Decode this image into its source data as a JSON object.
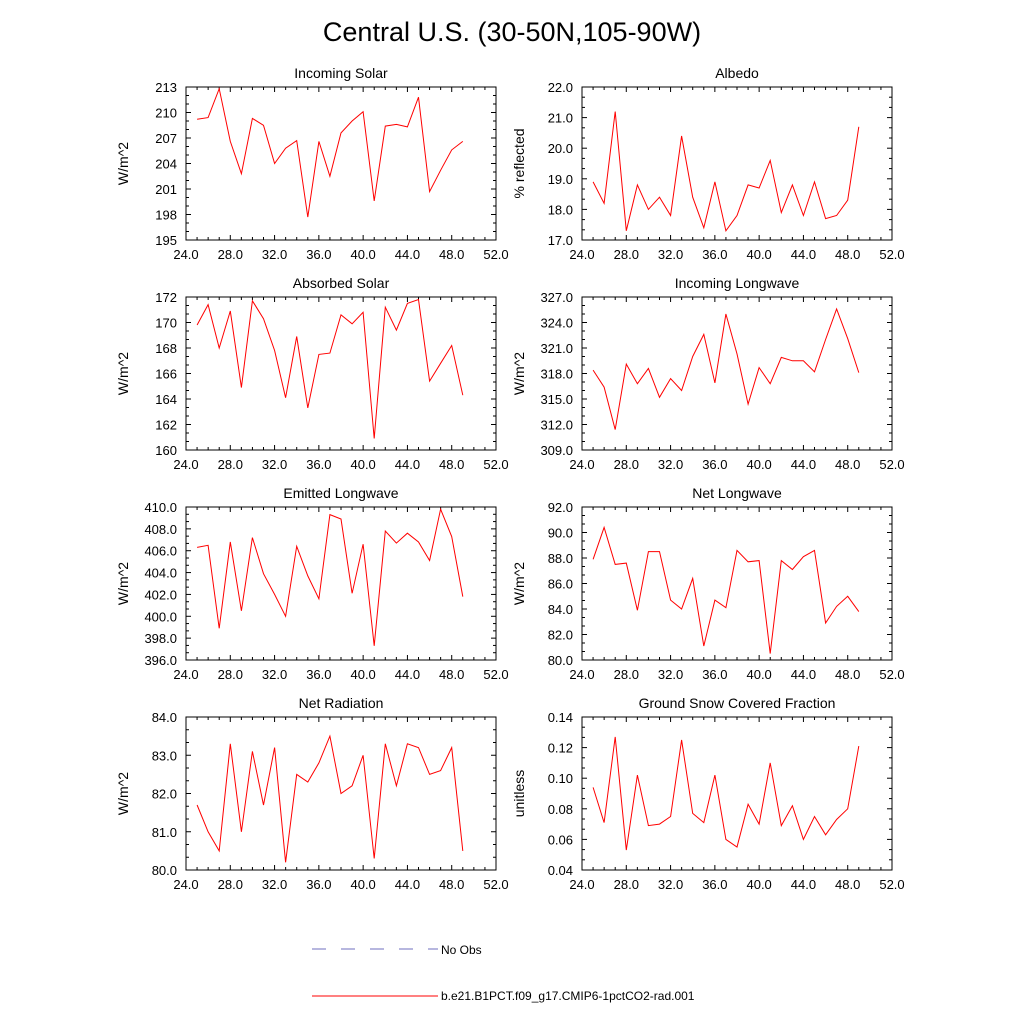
{
  "figure": {
    "title": "Central U.S. (30-50N,105-90W)",
    "legend": [
      {
        "label": "No Obs",
        "color": "#6f6fbf",
        "dash": "dashed"
      },
      {
        "label": "b.e21.B1PCT.f09_g17.CMIP6-1pctCO2-rad.001",
        "color": "#ff0000",
        "dash": "solid"
      }
    ]
  },
  "chart_data": [
    {
      "type": "line",
      "title": "Incoming Solar",
      "ylabel": "W/m^2",
      "xlim": [
        24,
        52
      ],
      "xticks": [
        "24.0",
        "28.0",
        "32.0",
        "36.0",
        "40.0",
        "44.0",
        "48.0",
        "52.0"
      ],
      "ylim": [
        195,
        213
      ],
      "yticks": [
        "195",
        "198",
        "201",
        "204",
        "207",
        "210",
        "213"
      ],
      "series": [
        {
          "color": "#ff0000",
          "x": [
            25,
            26,
            27,
            28,
            29,
            30,
            31,
            32,
            33,
            34,
            35,
            36,
            37,
            38,
            39,
            40,
            41,
            42,
            43,
            44,
            45,
            46,
            47,
            48,
            49
          ],
          "y": [
            209.2,
            209.4,
            212.8,
            206.6,
            202.8,
            209.3,
            208.5,
            204.0,
            205.8,
            206.7,
            197.7,
            206.6,
            202.5,
            207.6,
            209.0,
            210.1,
            199.6,
            208.4,
            208.6,
            208.3,
            211.8,
            200.7,
            203.2,
            205.6,
            206.6
          ]
        }
      ]
    },
    {
      "type": "line",
      "title": "Albedo",
      "ylabel": "% reflected",
      "xlim": [
        24,
        52
      ],
      "xticks": [
        "24.0",
        "28.0",
        "32.0",
        "36.0",
        "40.0",
        "44.0",
        "48.0",
        "52.0"
      ],
      "ylim": [
        17,
        22
      ],
      "yticks": [
        "17.0",
        "18.0",
        "19.0",
        "20.0",
        "21.0",
        "22.0"
      ],
      "series": [
        {
          "color": "#ff0000",
          "x": [
            25,
            26,
            27,
            28,
            29,
            30,
            31,
            32,
            33,
            34,
            35,
            36,
            37,
            38,
            39,
            40,
            41,
            42,
            43,
            44,
            45,
            46,
            47,
            48,
            49
          ],
          "y": [
            18.9,
            18.2,
            21.2,
            17.3,
            18.8,
            18.0,
            18.4,
            17.8,
            20.4,
            18.4,
            17.4,
            18.9,
            17.3,
            17.8,
            18.8,
            18.7,
            19.6,
            17.9,
            18.8,
            17.8,
            18.9,
            17.7,
            17.8,
            18.3,
            20.7
          ]
        }
      ]
    },
    {
      "type": "line",
      "title": "Absorbed Solar",
      "ylabel": "W/m^2",
      "xlim": [
        24,
        52
      ],
      "xticks": [
        "24.0",
        "28.0",
        "32.0",
        "36.0",
        "40.0",
        "44.0",
        "48.0",
        "52.0"
      ],
      "ylim": [
        160,
        172
      ],
      "yticks": [
        "160",
        "162",
        "164",
        "166",
        "168",
        "170",
        "172"
      ],
      "series": [
        {
          "color": "#ff0000",
          "x": [
            25,
            26,
            27,
            28,
            29,
            30,
            31,
            32,
            33,
            34,
            35,
            36,
            37,
            38,
            39,
            40,
            41,
            42,
            43,
            44,
            45,
            46,
            47,
            48,
            49
          ],
          "y": [
            169.8,
            171.4,
            168.0,
            170.9,
            164.9,
            171.7,
            170.3,
            167.8,
            164.1,
            168.9,
            163.3,
            167.5,
            167.6,
            170.6,
            169.9,
            170.8,
            160.9,
            171.2,
            169.4,
            171.5,
            171.8,
            165.4,
            166.8,
            168.2,
            164.3
          ]
        }
      ]
    },
    {
      "type": "line",
      "title": "Incoming Longwave",
      "ylabel": "W/m^2",
      "xlim": [
        24,
        52
      ],
      "xticks": [
        "24.0",
        "28.0",
        "32.0",
        "36.0",
        "40.0",
        "44.0",
        "48.0",
        "52.0"
      ],
      "ylim": [
        309,
        327
      ],
      "yticks": [
        "309.0",
        "312.0",
        "315.0",
        "318.0",
        "321.0",
        "324.0",
        "327.0"
      ],
      "series": [
        {
          "color": "#ff0000",
          "x": [
            25,
            26,
            27,
            28,
            29,
            30,
            31,
            32,
            33,
            34,
            35,
            36,
            37,
            38,
            39,
            40,
            41,
            42,
            43,
            44,
            45,
            46,
            47,
            48,
            49
          ],
          "y": [
            318.4,
            316.4,
            311.4,
            319.1,
            316.8,
            318.6,
            315.2,
            317.4,
            316.0,
            320.0,
            322.6,
            316.9,
            325.0,
            320.3,
            314.4,
            318.7,
            316.8,
            319.9,
            319.5,
            319.5,
            318.2,
            322.0,
            325.6,
            322.1,
            318.1
          ]
        }
      ]
    },
    {
      "type": "line",
      "title": "Emitted Longwave",
      "ylabel": "W/m^2",
      "xlim": [
        24,
        52
      ],
      "xticks": [
        "24.0",
        "28.0",
        "32.0",
        "36.0",
        "40.0",
        "44.0",
        "48.0",
        "52.0"
      ],
      "ylim": [
        396,
        410
      ],
      "yticks": [
        "396.0",
        "398.0",
        "400.0",
        "402.0",
        "404.0",
        "406.0",
        "408.0",
        "410.0"
      ],
      "series": [
        {
          "color": "#ff0000",
          "x": [
            25,
            26,
            27,
            28,
            29,
            30,
            31,
            32,
            33,
            34,
            35,
            36,
            37,
            38,
            39,
            40,
            41,
            42,
            43,
            44,
            45,
            46,
            47,
            48,
            49
          ],
          "y": [
            406.3,
            406.5,
            398.9,
            406.8,
            400.5,
            407.2,
            403.9,
            402.0,
            400.0,
            406.4,
            403.7,
            401.6,
            409.3,
            408.9,
            402.1,
            406.6,
            397.3,
            407.8,
            406.7,
            407.6,
            406.8,
            405.1,
            409.8,
            407.3,
            401.8
          ]
        }
      ]
    },
    {
      "type": "line",
      "title": "Net Longwave",
      "ylabel": "W/m^2",
      "xlim": [
        24,
        52
      ],
      "xticks": [
        "24.0",
        "28.0",
        "32.0",
        "36.0",
        "40.0",
        "44.0",
        "48.0",
        "52.0"
      ],
      "ylim": [
        80,
        92
      ],
      "yticks": [
        "80.0",
        "82.0",
        "84.0",
        "86.0",
        "88.0",
        "90.0",
        "92.0"
      ],
      "series": [
        {
          "color": "#ff0000",
          "x": [
            25,
            26,
            27,
            28,
            29,
            30,
            31,
            32,
            33,
            34,
            35,
            36,
            37,
            38,
            39,
            40,
            41,
            42,
            43,
            44,
            45,
            46,
            47,
            48,
            49
          ],
          "y": [
            87.9,
            90.4,
            87.5,
            87.6,
            83.9,
            88.5,
            88.5,
            84.7,
            84.0,
            86.4,
            81.1,
            84.7,
            84.1,
            88.6,
            87.7,
            87.8,
            80.5,
            87.8,
            87.1,
            88.1,
            88.6,
            82.9,
            84.2,
            85.0,
            83.8
          ]
        }
      ]
    },
    {
      "type": "line",
      "title": "Net Radiation",
      "ylabel": "W/m^2",
      "xlim": [
        24,
        52
      ],
      "xticks": [
        "24.0",
        "28.0",
        "32.0",
        "36.0",
        "40.0",
        "44.0",
        "48.0",
        "52.0"
      ],
      "ylim": [
        80,
        84
      ],
      "yticks": [
        "80.0",
        "81.0",
        "82.0",
        "83.0",
        "84.0"
      ],
      "series": [
        {
          "color": "#ff0000",
          "x": [
            25,
            26,
            27,
            28,
            29,
            30,
            31,
            32,
            33,
            34,
            35,
            36,
            37,
            38,
            39,
            40,
            41,
            42,
            43,
            44,
            45,
            46,
            47,
            48,
            49
          ],
          "y": [
            81.7,
            81.0,
            80.5,
            83.3,
            81.0,
            83.1,
            81.7,
            83.2,
            80.2,
            82.5,
            82.3,
            82.8,
            83.5,
            82.0,
            82.2,
            83.0,
            80.3,
            83.3,
            82.2,
            83.3,
            83.2,
            82.5,
            82.6,
            83.2,
            80.5
          ]
        }
      ]
    },
    {
      "type": "line",
      "title": "Ground Snow Covered Fraction",
      "ylabel": "unitless",
      "xlim": [
        24,
        52
      ],
      "xticks": [
        "24.0",
        "28.0",
        "32.0",
        "36.0",
        "40.0",
        "44.0",
        "48.0",
        "52.0"
      ],
      "ylim": [
        0.04,
        0.14
      ],
      "yticks": [
        "0.04",
        "0.06",
        "0.08",
        "0.10",
        "0.12",
        "0.14"
      ],
      "series": [
        {
          "color": "#ff0000",
          "x": [
            25,
            26,
            27,
            28,
            29,
            30,
            31,
            32,
            33,
            34,
            35,
            36,
            37,
            38,
            39,
            40,
            41,
            42,
            43,
            44,
            45,
            46,
            47,
            48,
            49
          ],
          "y": [
            0.094,
            0.071,
            0.127,
            0.053,
            0.102,
            0.069,
            0.07,
            0.075,
            0.125,
            0.077,
            0.071,
            0.102,
            0.06,
            0.055,
            0.083,
            0.07,
            0.11,
            0.069,
            0.082,
            0.06,
            0.075,
            0.063,
            0.073,
            0.08,
            0.121
          ]
        }
      ]
    }
  ]
}
